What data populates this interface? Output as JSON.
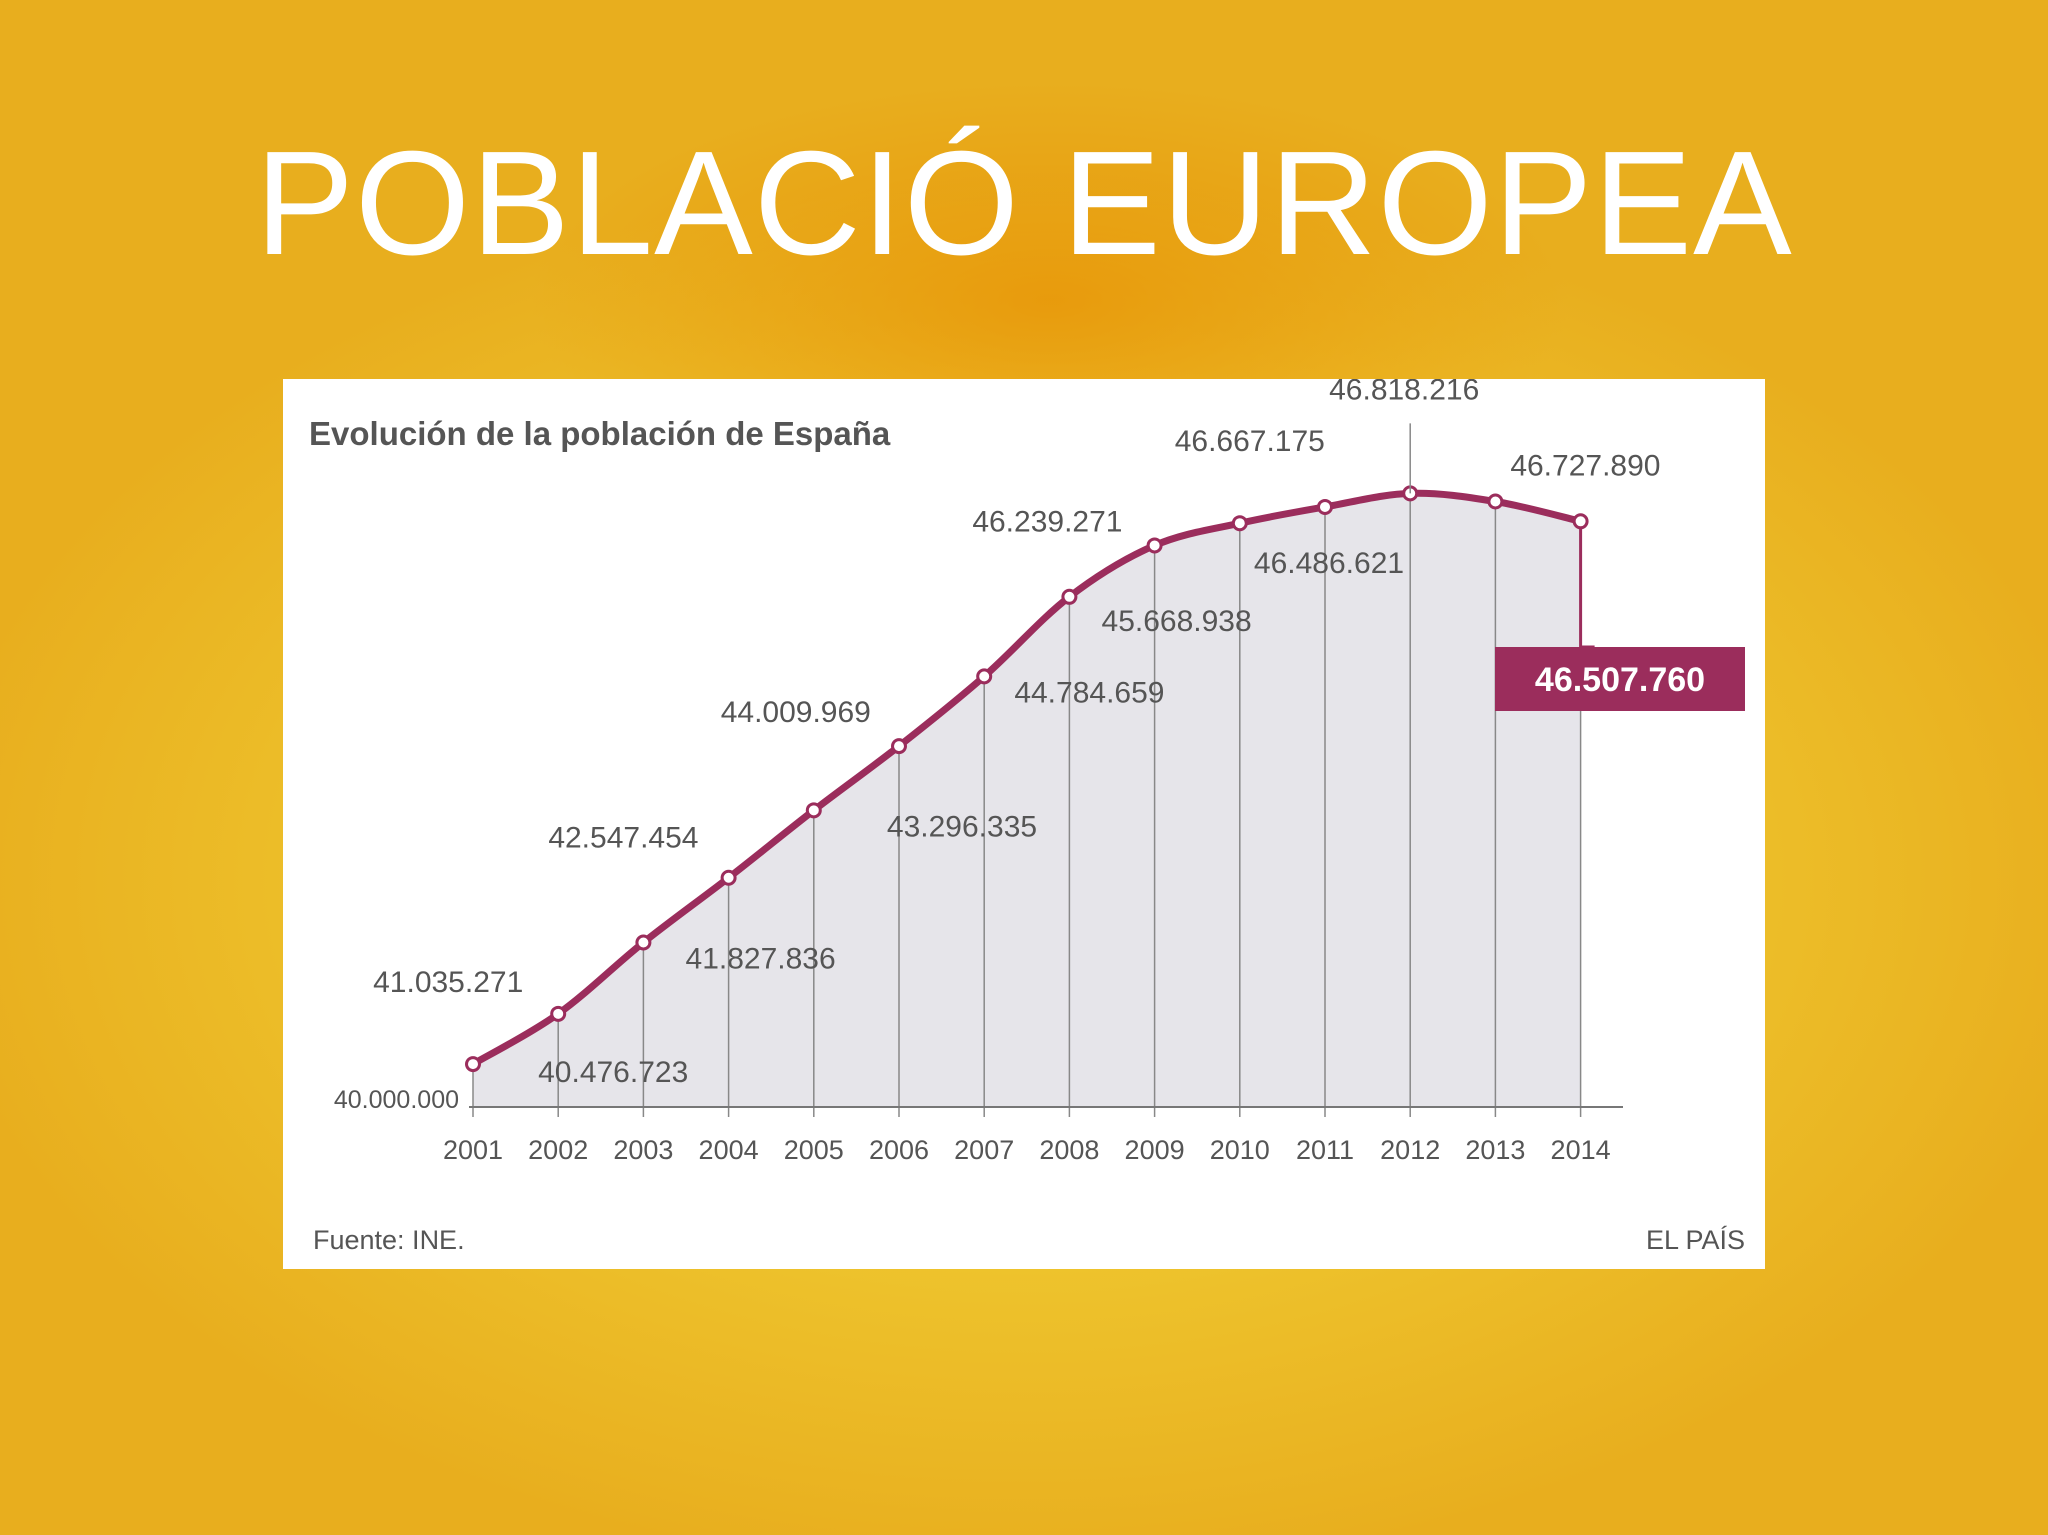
{
  "slide": {
    "title": "POBLACIÓ EUROPEA"
  },
  "chart_data": {
    "type": "area",
    "title": "Evolución de la población de España",
    "x": [
      "2001",
      "2002",
      "2003",
      "2004",
      "2005",
      "2006",
      "2007",
      "2008",
      "2009",
      "2010",
      "2011",
      "2012",
      "2013",
      "2014"
    ],
    "series": [
      {
        "values": [
          40476723,
          41035271,
          41827836,
          42547454,
          43296335,
          44009969,
          44784659,
          45668938,
          46239271,
          46486621,
          46667175,
          46818216,
          46727890,
          46507760
        ]
      }
    ],
    "value_labels": [
      "40.476.723",
      "41.035.271",
      "41.827.836",
      "42.547.454",
      "43.296.335",
      "44.009.969",
      "44.784.659",
      "45.668.938",
      "46.239.271",
      "46.486.621",
      "46.667.175",
      "46.818.216",
      "46.727.890",
      "46.507.760"
    ],
    "highlighted_index": 13,
    "ylim": [
      40000000,
      47000000
    ],
    "baseline_label": "40.000.000",
    "source": "Fuente: INE.",
    "publisher": "EL PAÍS",
    "colors": {
      "line": "#9b2d5c",
      "area": "#e6e5ea",
      "text": "#555555",
      "title": "#555555",
      "highlight_bg": "#9b2d5c",
      "highlight_text": "#ffffff"
    },
    "grid": false
  }
}
